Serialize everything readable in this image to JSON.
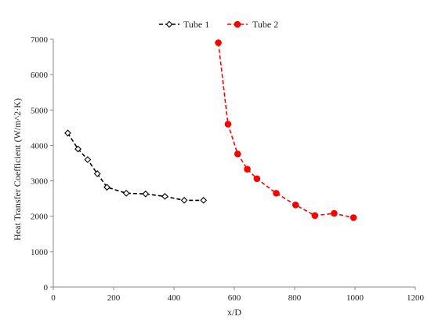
{
  "chart_data": {
    "type": "line",
    "xlabel": "x/D",
    "ylabel": "Heat Transfer Coefficient  (W/m^2·K)",
    "xlim": [
      0,
      1200
    ],
    "ylim": [
      0,
      7000
    ],
    "x_ticks": [
      0,
      200,
      400,
      600,
      800,
      1000,
      1200
    ],
    "y_ticks": [
      0,
      1000,
      2000,
      3000,
      4000,
      5000,
      6000,
      7000
    ],
    "grid": false,
    "legend_position": "top-center",
    "series": [
      {
        "name": "Tube 1",
        "color": "#000000",
        "marker": "diamond-open",
        "line_style": "dashed",
        "x": [
          48,
          82,
          114,
          146,
          178,
          242,
          306,
          370,
          434,
          498
        ],
        "y": [
          4350,
          3900,
          3600,
          3200,
          2820,
          2650,
          2630,
          2560,
          2450,
          2450
        ]
      },
      {
        "name": "Tube 2",
        "color": "#ff0000",
        "marker": "circle-filled",
        "line_style": "dashed",
        "x": [
          547,
          579,
          611,
          643,
          675,
          739,
          803,
          867,
          931,
          995
        ],
        "y": [
          6900,
          4600,
          3760,
          3330,
          3060,
          2650,
          2320,
          2020,
          2080,
          1960
        ]
      }
    ]
  }
}
